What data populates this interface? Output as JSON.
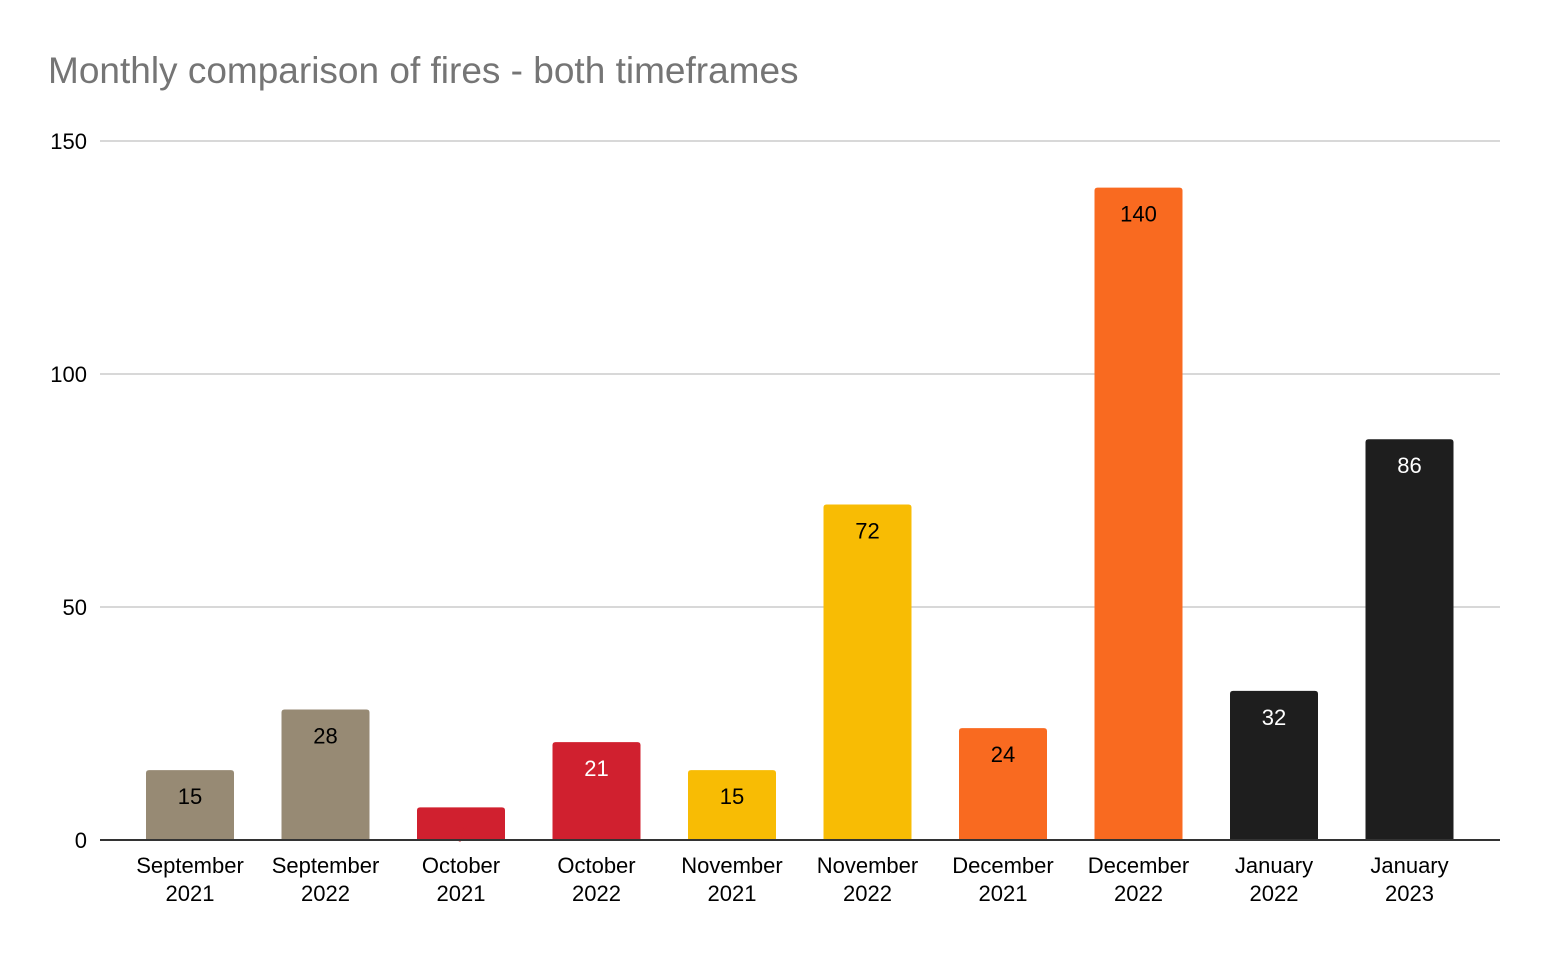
{
  "chart_data": {
    "type": "bar",
    "title": "Monthly comparison of fires - both timeframes",
    "xlabel": "",
    "ylabel": "",
    "categories": [
      [
        "September",
        "2021"
      ],
      [
        "September",
        "2022"
      ],
      [
        "October",
        "2021"
      ],
      [
        "October",
        "2022"
      ],
      [
        "November",
        "2021"
      ],
      [
        "November",
        "2022"
      ],
      [
        "December",
        "2021"
      ],
      [
        "December",
        "2022"
      ],
      [
        "January",
        "2022"
      ],
      [
        "January",
        "2023"
      ]
    ],
    "values": [
      15,
      28,
      7,
      21,
      15,
      72,
      24,
      140,
      32,
      86
    ],
    "colors": [
      "#978a74",
      "#978a74",
      "#d0202f",
      "#d0202f",
      "#f8bc04",
      "#f8bc04",
      "#f96a20",
      "#f96a20",
      "#1e1e1e",
      "#1e1e1e"
    ],
    "label_colors": [
      "#000000",
      "#000000",
      "#d0202f",
      "#ffffff",
      "#000000",
      "#000000",
      "#000000",
      "#000000",
      "#ffffff",
      "#ffffff"
    ],
    "ylim": [
      0,
      150
    ],
    "yticks": [
      0,
      50,
      100,
      150
    ],
    "grid": true,
    "legend": "none"
  }
}
